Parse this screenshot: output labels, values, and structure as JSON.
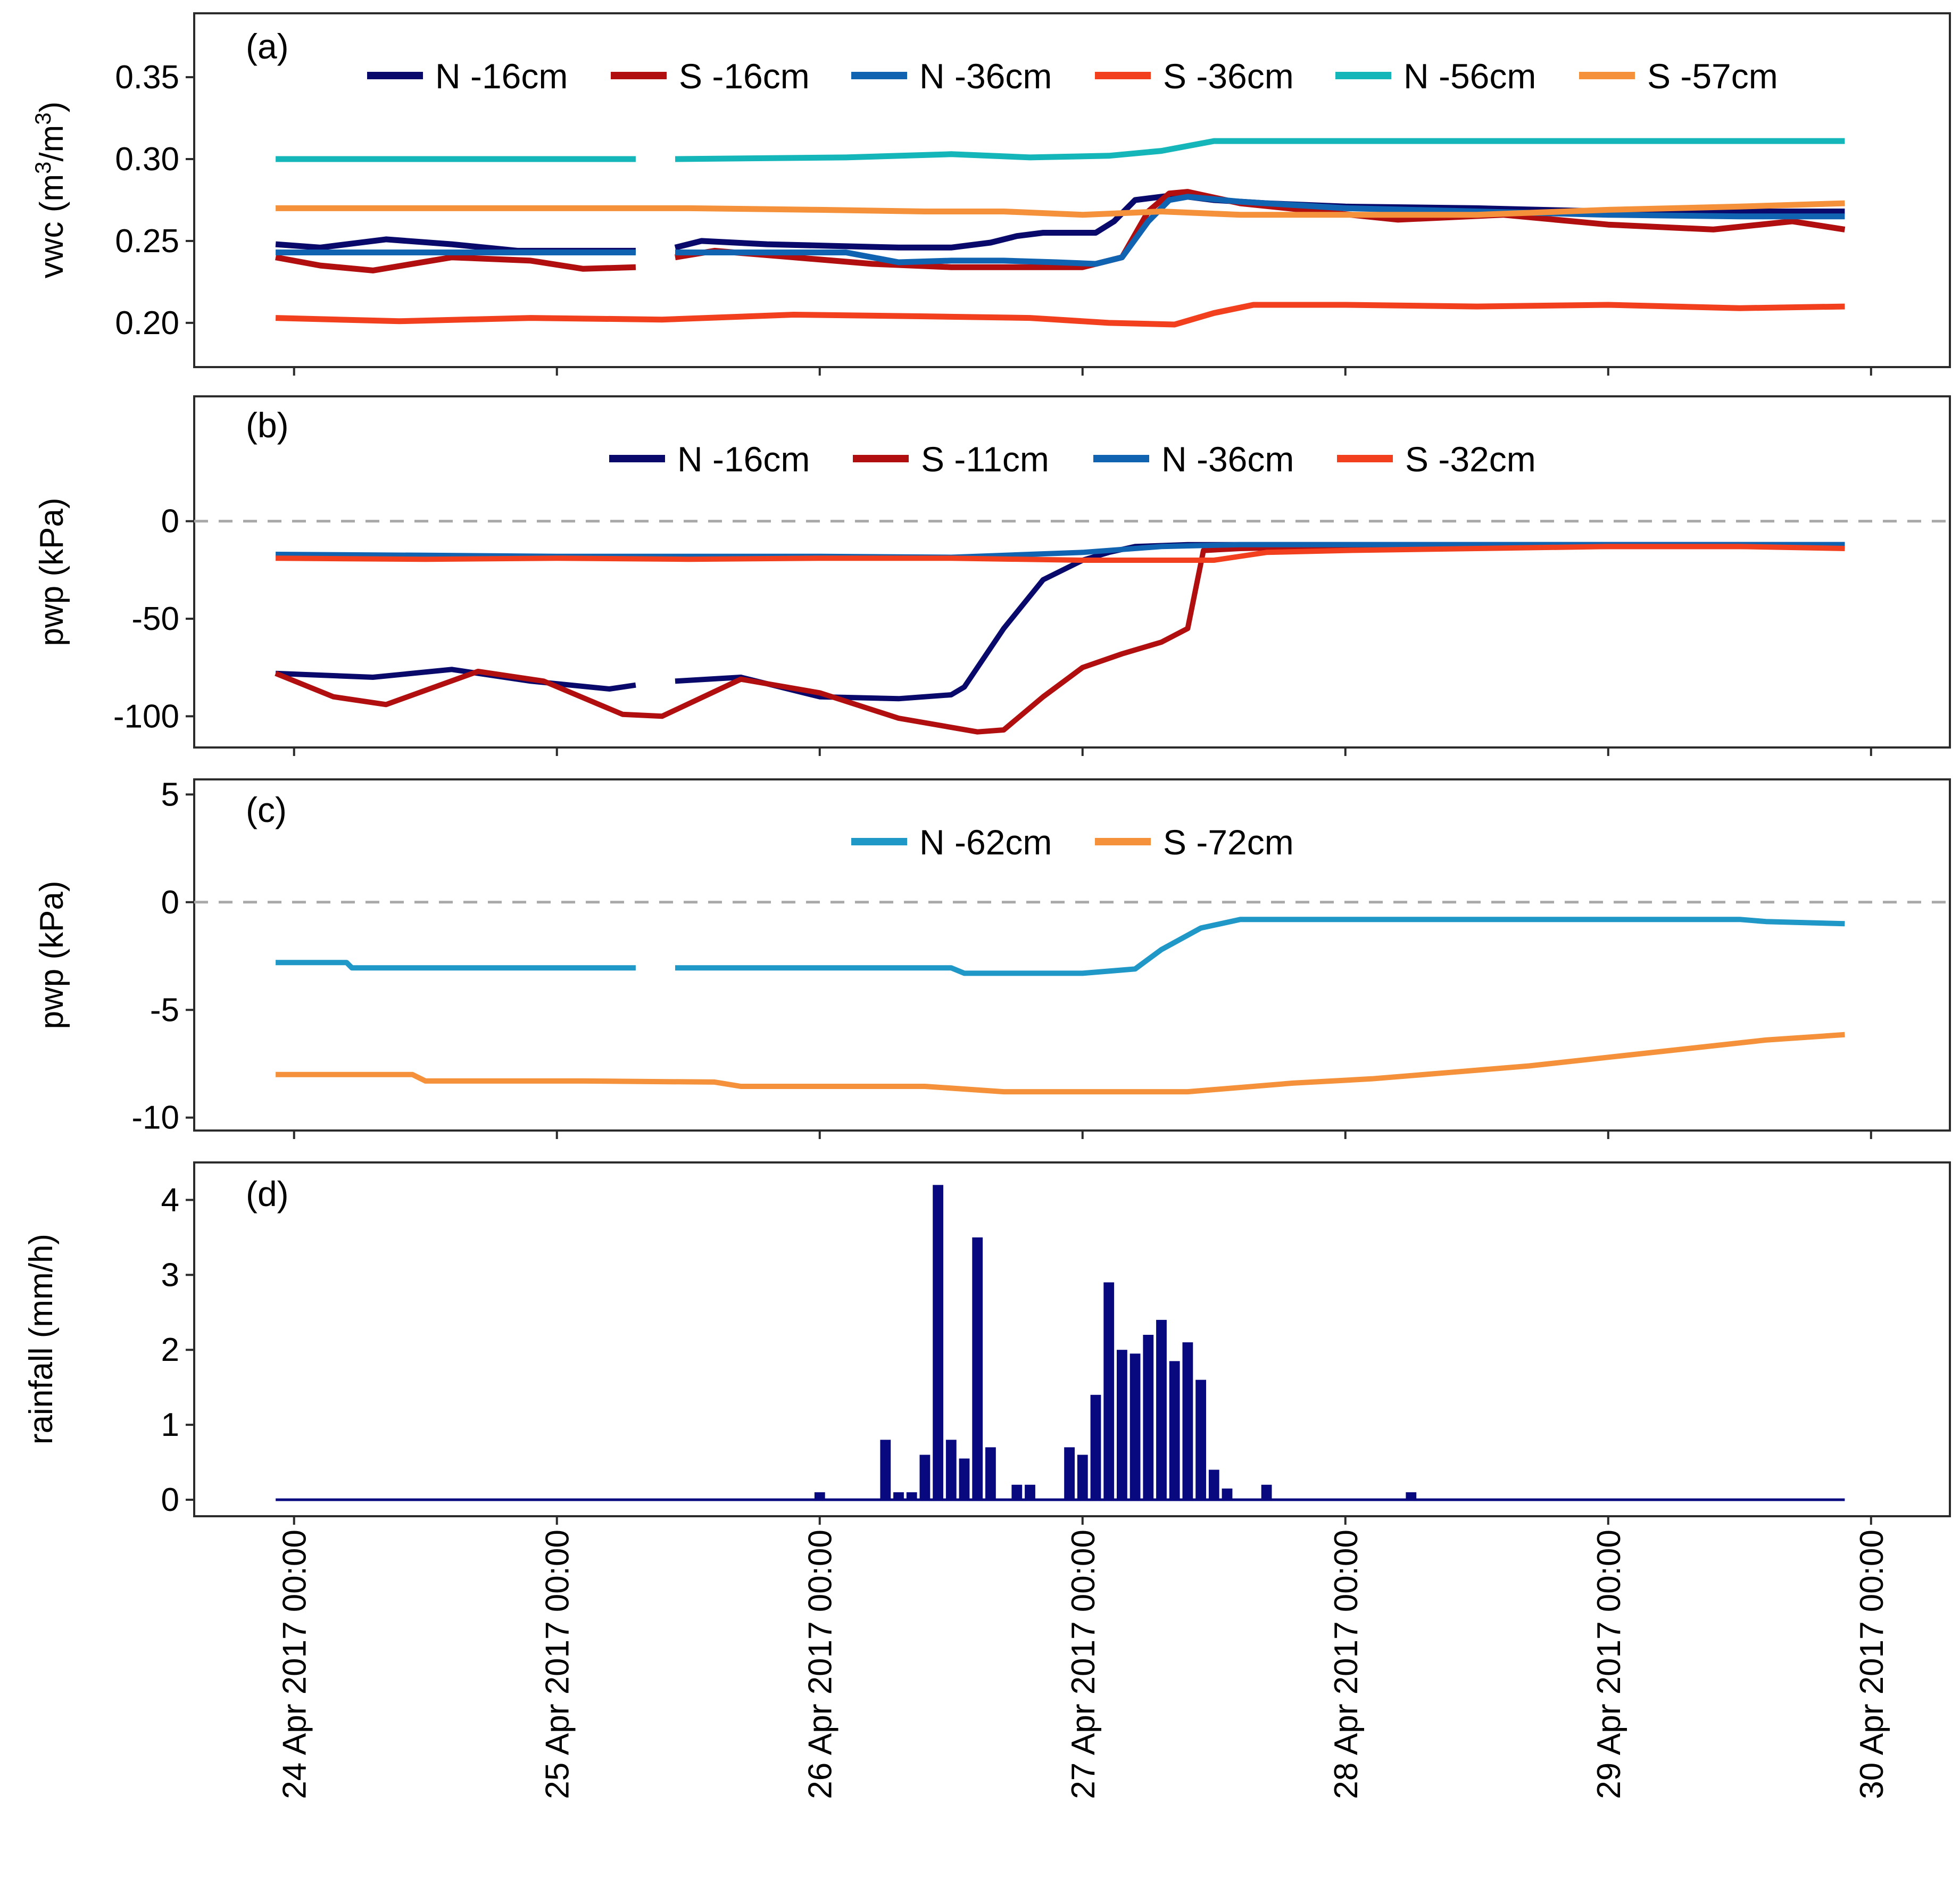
{
  "chart_data": [
    {
      "type": "line",
      "panel": "(a)",
      "ylabel": "vwc (m³/m³)",
      "ylabel_parts": {
        "main": "vwc (m",
        "sup1": "3",
        "mid": "/m",
        "sup2": "3",
        "end": ")"
      },
      "ylim": [
        0.173,
        0.389
      ],
      "yticks": [
        0.2,
        0.25,
        0.3,
        0.35
      ],
      "ytick_labels": [
        "0.20",
        "0.25",
        "0.30",
        "0.35"
      ],
      "xlim": [
        -0.38,
        6.3
      ],
      "legend_position": "top",
      "series": [
        {
          "name": "N -16cm",
          "color": "#08096b",
          "x": [
            -0.07,
            0.1,
            0.35,
            0.6,
            0.85,
            1.1,
            1.3,
            1.38,
            1.45,
            1.55,
            1.8,
            2.05,
            2.3,
            2.5,
            2.65,
            2.75,
            2.85,
            3.05,
            3.12,
            3.2,
            3.35,
            3.5,
            3.7,
            4.0,
            4.5,
            5.0,
            5.5,
            5.9
          ],
          "y": [
            0.248,
            0.246,
            0.251,
            0.248,
            0.244,
            0.244,
            0.244,
            null,
            0.246,
            0.25,
            0.248,
            0.247,
            0.246,
            0.246,
            0.249,
            0.253,
            0.255,
            0.255,
            0.262,
            0.275,
            0.278,
            0.275,
            0.273,
            0.271,
            0.27,
            0.268,
            0.268,
            0.268
          ]
        },
        {
          "name": "S -16cm",
          "color": "#b10f0f",
          "x": [
            -0.07,
            0.1,
            0.3,
            0.6,
            0.9,
            1.1,
            1.3,
            1.38,
            1.45,
            1.6,
            1.9,
            2.2,
            2.5,
            2.8,
            3.0,
            3.15,
            3.25,
            3.33,
            3.4,
            3.6,
            3.9,
            4.2,
            4.6,
            5.0,
            5.4,
            5.7,
            5.9
          ],
          "y": [
            0.24,
            0.235,
            0.232,
            0.24,
            0.238,
            0.233,
            0.234,
            null,
            0.24,
            0.244,
            0.24,
            0.236,
            0.234,
            0.234,
            0.234,
            0.24,
            0.268,
            0.279,
            0.28,
            0.273,
            0.268,
            0.263,
            0.266,
            0.26,
            0.257,
            0.262,
            0.257
          ]
        },
        {
          "name": "N -36cm",
          "color": "#0f63b1",
          "x": [
            -0.07,
            0.3,
            0.6,
            0.9,
            1.3,
            1.38,
            1.45,
            1.7,
            2.1,
            2.3,
            2.5,
            2.7,
            2.9,
            3.05,
            3.15,
            3.25,
            3.33,
            3.4,
            3.6,
            4.0,
            4.5,
            5.0,
            5.5,
            5.9
          ],
          "y": [
            0.243,
            0.243,
            0.243,
            0.243,
            0.243,
            null,
            0.243,
            0.243,
            0.243,
            0.237,
            0.238,
            0.238,
            0.237,
            0.236,
            0.24,
            0.262,
            0.275,
            0.277,
            0.274,
            0.27,
            0.268,
            0.266,
            0.265,
            0.265
          ]
        },
        {
          "name": "S -36cm",
          "color": "#f2401f",
          "x": [
            -0.07,
            0.4,
            0.9,
            1.4,
            1.9,
            2.4,
            2.8,
            3.1,
            3.35,
            3.5,
            3.65,
            4.0,
            4.5,
            5.0,
            5.5,
            5.9
          ],
          "y": [
            0.203,
            0.201,
            0.203,
            0.202,
            0.205,
            0.204,
            0.203,
            0.2,
            0.199,
            0.206,
            0.211,
            0.211,
            0.21,
            0.211,
            0.209,
            0.21
          ]
        },
        {
          "name": "N -56cm",
          "color": "#14b6b9",
          "x": [
            -0.07,
            0.6,
            1.3,
            1.38,
            1.45,
            2.1,
            2.5,
            2.8,
            3.1,
            3.3,
            3.5,
            4.0,
            4.5,
            5.0,
            5.5,
            5.9
          ],
          "y": [
            0.3,
            0.3,
            0.3,
            null,
            0.3,
            0.301,
            0.303,
            0.301,
            0.302,
            0.305,
            0.311,
            0.311,
            0.311,
            0.311,
            0.311,
            0.311
          ]
        },
        {
          "name": "S -57cm",
          "color": "#f4913a",
          "x": [
            -0.07,
            0.5,
            1.0,
            1.5,
            2.0,
            2.4,
            2.7,
            3.0,
            3.3,
            3.6,
            4.0,
            4.5,
            5.0,
            5.5,
            5.9
          ],
          "y": [
            0.27,
            0.27,
            0.27,
            0.27,
            0.269,
            0.268,
            0.268,
            0.266,
            0.268,
            0.266,
            0.266,
            0.266,
            0.269,
            0.271,
            0.273
          ]
        }
      ]
    },
    {
      "type": "line",
      "panel": "(b)",
      "ylabel": "pwp (kPa)",
      "ylim": [
        -116,
        64
      ],
      "yticks": [
        -100,
        -50,
        0
      ],
      "ytick_labels": [
        "-100",
        "-50",
        "0"
      ],
      "reference_line": 0,
      "xlim": [
        -0.38,
        6.3
      ],
      "legend_position": "top",
      "series": [
        {
          "name": "N -16cm",
          "color": "#08096b",
          "x": [
            -0.07,
            0.3,
            0.6,
            0.9,
            1.2,
            1.3,
            1.38,
            1.45,
            1.7,
            2.0,
            2.3,
            2.5,
            2.55,
            2.7,
            2.85,
            3.0,
            3.1,
            3.2,
            3.4,
            3.8,
            4.5,
            5.2,
            5.9
          ],
          "y": [
            -78,
            -80,
            -76,
            -82,
            -86,
            -84,
            null,
            -82,
            -80,
            -90,
            -91,
            -89,
            -85,
            -55,
            -30,
            -20,
            -16,
            -13,
            -12,
            -12,
            -12,
            -12,
            -12
          ]
        },
        {
          "name": "S -11cm",
          "color": "#b10f0f",
          "x": [
            -0.07,
            0.15,
            0.35,
            0.7,
            0.95,
            1.25,
            1.4,
            1.7,
            2.0,
            2.3,
            2.6,
            2.7,
            2.85,
            3.0,
            3.15,
            3.3,
            3.4,
            3.46,
            3.6,
            4.0,
            4.5,
            5.0,
            5.5,
            5.9
          ],
          "y": [
            -78,
            -90,
            -94,
            -77,
            -82,
            -99,
            -100,
            -81,
            -88,
            -101,
            -108,
            -107,
            -90,
            -75,
            -68,
            -62,
            -55,
            -15,
            -14,
            -13,
            -13,
            -13,
            -13,
            -13
          ]
        },
        {
          "name": "N -36cm",
          "color": "#0f63b1",
          "x": [
            -0.07,
            0.5,
            1.0,
            1.5,
            2.0,
            2.5,
            3.0,
            3.3,
            3.6,
            4.0,
            4.5,
            5.0,
            5.5,
            5.9
          ],
          "y": [
            -17,
            -17.5,
            -18,
            -18,
            -18,
            -18.5,
            -16,
            -13,
            -12,
            -12,
            -12,
            -12,
            -12,
            -12
          ]
        },
        {
          "name": "S -32cm",
          "color": "#f2401f",
          "x": [
            -0.07,
            0.5,
            1.0,
            1.5,
            2.0,
            2.5,
            3.0,
            3.2,
            3.5,
            3.7,
            4.0,
            4.5,
            5.0,
            5.5,
            5.9
          ],
          "y": [
            -19,
            -19.5,
            -19,
            -19.5,
            -19,
            -19,
            -20,
            -20,
            -20,
            -16,
            -15,
            -14,
            -13,
            -13,
            -14
          ]
        }
      ]
    },
    {
      "type": "line",
      "panel": "(c)",
      "ylabel": "pwp (kPa)",
      "ylim": [
        -10.6,
        5.7
      ],
      "yticks": [
        -10,
        -5,
        0,
        5
      ],
      "ytick_labels": [
        "-10",
        "-5",
        "0",
        "5"
      ],
      "reference_line": 0,
      "xlim": [
        -0.38,
        6.3
      ],
      "legend_position": "top",
      "series": [
        {
          "name": "N -62cm",
          "color": "#1f97c7",
          "x": [
            -0.07,
            0.2,
            0.22,
            1.3,
            1.38,
            1.45,
            2.5,
            2.55,
            3.0,
            3.1,
            3.2,
            3.3,
            3.45,
            3.6,
            4.0,
            4.5,
            5.0,
            5.5,
            5.6,
            5.9
          ],
          "y": [
            -2.8,
            -2.8,
            -3.05,
            -3.05,
            null,
            -3.05,
            -3.05,
            -3.3,
            -3.3,
            -3.2,
            -3.1,
            -2.2,
            -1.2,
            -0.8,
            -0.8,
            -0.8,
            -0.8,
            -0.8,
            -0.9,
            -1.0
          ]
        },
        {
          "name": "S -72cm",
          "color": "#f4913a",
          "x": [
            -0.07,
            0.45,
            0.5,
            1.1,
            1.6,
            1.7,
            2.4,
            2.7,
            3.0,
            3.2,
            3.4,
            3.8,
            4.1,
            4.4,
            4.7,
            5.0,
            5.3,
            5.6,
            5.9
          ],
          "y": [
            -8.0,
            -8.0,
            -8.3,
            -8.3,
            -8.35,
            -8.55,
            -8.55,
            -8.8,
            -8.8,
            -8.8,
            -8.8,
            -8.4,
            -8.2,
            -7.9,
            -7.6,
            -7.2,
            -6.8,
            -6.4,
            -6.15
          ]
        }
      ]
    },
    {
      "type": "bar",
      "panel": "(d)",
      "ylabel": "rainfall (mm/h)",
      "ylim": [
        -0.22,
        4.5
      ],
      "yticks": [
        0,
        1,
        2,
        3,
        4
      ],
      "ytick_labels": [
        "0",
        "1",
        "2",
        "3",
        "4"
      ],
      "xlim": [
        -0.38,
        6.3
      ],
      "baseline_range": [
        -0.07,
        5.9
      ],
      "color": "#08087f",
      "x_days": [
        2.0,
        2.25,
        2.3,
        2.35,
        2.4,
        2.45,
        2.5,
        2.55,
        2.6,
        2.65,
        2.7,
        2.75,
        2.8,
        2.85,
        2.95,
        3.0,
        3.05,
        3.1,
        3.15,
        3.2,
        3.25,
        3.3,
        3.35,
        3.4,
        3.45,
        3.5,
        3.55,
        3.6,
        3.7,
        4.25
      ],
      "values": [
        0.1,
        0.8,
        0.1,
        0.1,
        0.6,
        4.2,
        0.8,
        0.55,
        3.5,
        0.7,
        0.0,
        0.2,
        0.2,
        0.0,
        0.7,
        0.6,
        1.4,
        2.9,
        2.0,
        1.95,
        2.2,
        2.4,
        1.85,
        2.1,
        1.6,
        0.4,
        0.15,
        0.0,
        0.2,
        0.1
      ]
    }
  ],
  "x_axis": {
    "tick_days": [
      0,
      1,
      2,
      3,
      4,
      5,
      6
    ],
    "tick_labels": [
      "24 Apr 2017 00:00",
      "25 Apr 2017 00:00",
      "26 Apr 2017 00:00",
      "27 Apr 2017 00:00",
      "28 Apr 2017 00:00",
      "29 Apr 2017 00:00",
      "30 Apr 2017 00:00"
    ]
  },
  "panel_tags": [
    "(a)",
    "(b)",
    "(c)",
    "(d)"
  ]
}
